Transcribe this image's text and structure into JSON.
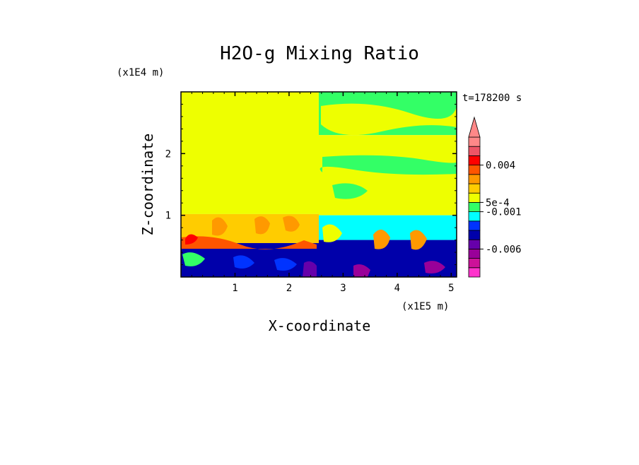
{
  "chart_data": {
    "type": "heatmap",
    "title": "H2O-g Mixing Ratio",
    "xlabel": "X-coordinate",
    "ylabel": "Z-coordinate",
    "x_unit": "(x1E5 m)",
    "y_unit": "(x1E4 m)",
    "time_label": "t=178200 s",
    "xlim": [
      0.0,
      5.1
    ],
    "ylim": [
      0.0,
      3.0
    ],
    "xticks": [
      1,
      2,
      3,
      4,
      5
    ],
    "xtick_labels": [
      "1",
      "2",
      "3",
      "4",
      "5"
    ],
    "yticks": [
      1,
      2
    ],
    "ytick_labels": [
      "1",
      "2"
    ],
    "colorbar": {
      "colors": [
        "#ff33cc",
        "#cc1199",
        "#990099",
        "#6600aa",
        "#0000aa",
        "#0033ff",
        "#00ffff",
        "#33ff66",
        "#eeff00",
        "#ffcc00",
        "#ff9900",
        "#ff5500",
        "#ff0000",
        "#ee5566",
        "#ff8888"
      ],
      "tick_labels": [
        "0.004",
        "5e-4",
        "-0.001",
        "-0.006"
      ],
      "tick_levels": [
        12,
        8,
        7,
        3
      ],
      "extend": "max"
    },
    "regions": [
      {
        "x": [
          0.0,
          2.55
        ],
        "z": [
          1.02,
          3.0
        ],
        "color": "#eeff00"
      },
      {
        "x": [
          0.0,
          2.55
        ],
        "z": [
          0.55,
          1.02
        ],
        "color": "#ffcc00"
      },
      {
        "x": [
          0.0,
          2.55
        ],
        "z": [
          0.0,
          0.55
        ],
        "color": "#0000aa"
      },
      {
        "x": [
          2.55,
          5.1
        ],
        "z": [
          2.3,
          3.0
        ],
        "color": "#33ff66"
      },
      {
        "x": [
          2.55,
          5.1
        ],
        "z": [
          1.0,
          2.3
        ],
        "color": "#eeff00"
      },
      {
        "x": [
          2.55,
          5.1
        ],
        "z": [
          0.6,
          1.0
        ],
        "color": "#00ffff"
      },
      {
        "x": [
          2.55,
          5.1
        ],
        "z": [
          0.0,
          0.6
        ],
        "color": "#0000aa"
      }
    ]
  },
  "colors": {
    "background": "#ffffff",
    "axis": "#000000"
  }
}
